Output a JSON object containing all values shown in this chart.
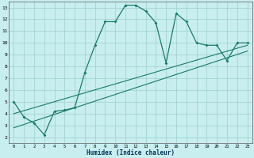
{
  "title": "",
  "xlabel": "Humidex (Indice chaleur)",
  "xlim": [
    -0.5,
    23.5
  ],
  "ylim": [
    1.5,
    13.5
  ],
  "xticks": [
    0,
    1,
    2,
    3,
    4,
    5,
    6,
    7,
    8,
    9,
    10,
    11,
    12,
    13,
    14,
    15,
    16,
    17,
    18,
    19,
    20,
    21,
    22,
    23
  ],
  "yticks": [
    2,
    3,
    4,
    5,
    6,
    7,
    8,
    9,
    10,
    11,
    12,
    13
  ],
  "bg_color": "#c8eef0",
  "grid_color": "#9ecfcc",
  "line_color": "#1a7a6a",
  "curve_x": [
    0,
    1,
    2,
    3,
    4,
    5,
    6,
    7,
    8,
    9,
    10,
    11,
    12,
    13,
    14,
    15,
    16,
    17,
    18,
    19,
    20,
    21,
    22,
    23
  ],
  "curve_y": [
    5.0,
    3.7,
    3.2,
    2.2,
    4.2,
    4.3,
    4.5,
    7.5,
    9.8,
    11.8,
    11.8,
    13.2,
    13.2,
    12.7,
    11.7,
    8.3,
    12.5,
    11.8,
    10.0,
    9.8,
    9.8,
    8.5,
    10.0,
    10.0
  ],
  "line1_x": [
    0,
    23
  ],
  "line1_y": [
    2.8,
    9.3
  ],
  "line2_x": [
    0,
    23
  ],
  "line2_y": [
    4.0,
    9.8
  ]
}
